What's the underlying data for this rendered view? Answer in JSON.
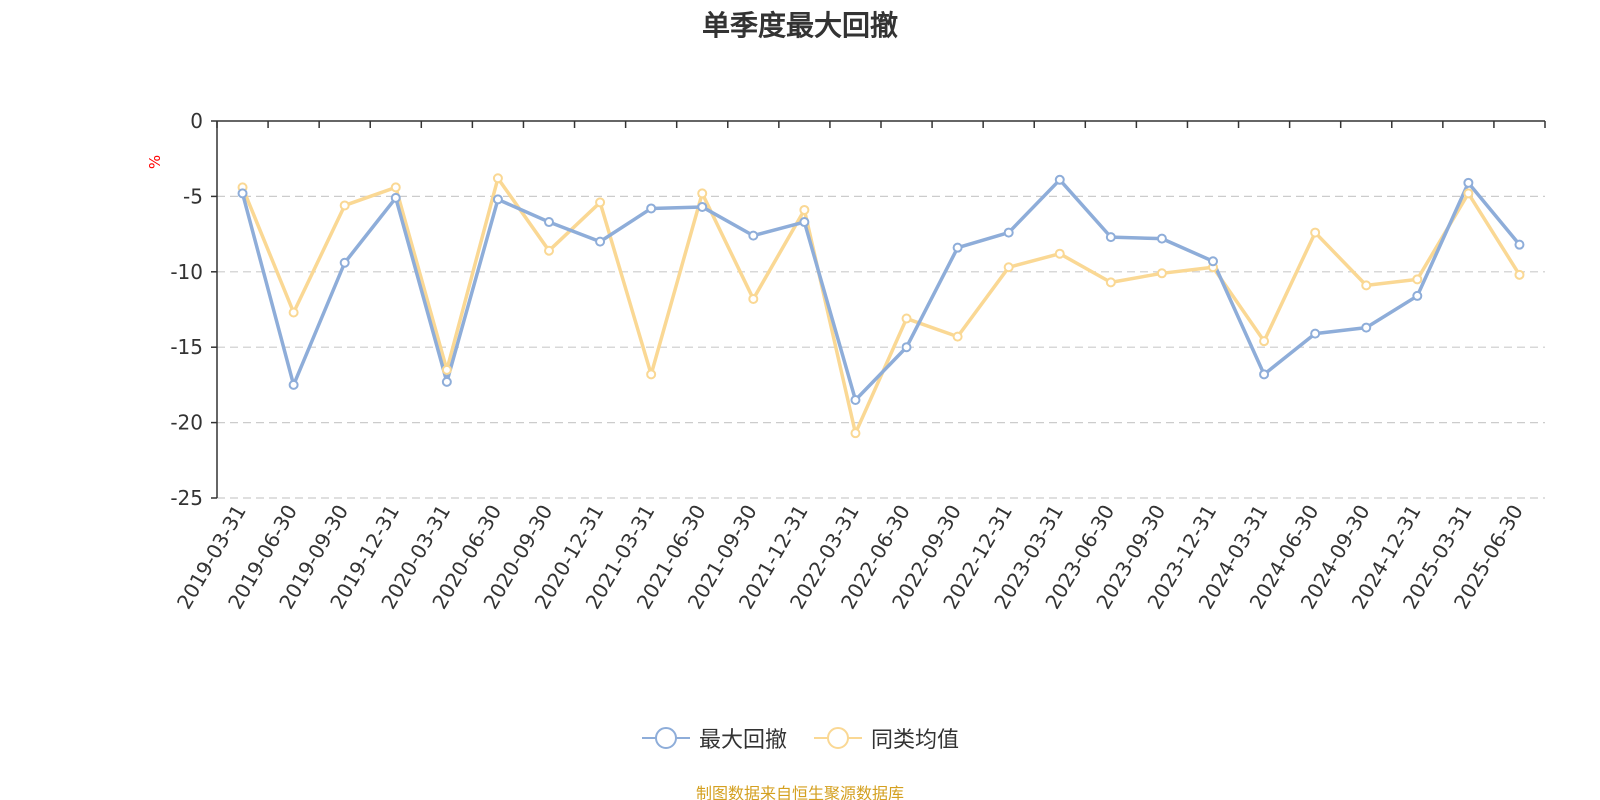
{
  "chart_data": {
    "type": "line",
    "title": "单季度最大回撤",
    "ylabel": "%",
    "ylim": [
      -25,
      0
    ],
    "yticks": [
      0,
      -5,
      -10,
      -15,
      -20,
      -25
    ],
    "grid": true,
    "legend_position": "bottom",
    "categories": [
      "2019-03-31",
      "2019-06-30",
      "2019-09-30",
      "2019-12-31",
      "2020-03-31",
      "2020-06-30",
      "2020-09-30",
      "2020-12-31",
      "2021-03-31",
      "2021-06-30",
      "2021-09-30",
      "2021-12-31",
      "2022-03-31",
      "2022-06-30",
      "2022-09-30",
      "2022-12-31",
      "2023-03-31",
      "2023-06-30",
      "2023-09-30",
      "2023-12-31",
      "2024-03-31",
      "2024-06-30",
      "2024-09-30",
      "2024-12-31",
      "2025-03-31",
      "2025-06-30"
    ],
    "series": [
      {
        "name": "最大回撤",
        "color": "#8eadd9",
        "values": [
          -4.8,
          -17.5,
          -9.4,
          -5.1,
          -17.3,
          -5.2,
          -6.7,
          -8.0,
          -5.8,
          -5.7,
          -7.6,
          -6.7,
          -18.5,
          -15.0,
          -8.4,
          -7.4,
          -3.9,
          -7.7,
          -7.8,
          -9.3,
          -16.8,
          -14.1,
          -13.7,
          -11.6,
          -4.1,
          -8.2
        ]
      },
      {
        "name": "同类均值",
        "color": "#fad894",
        "values": [
          -4.4,
          -12.7,
          -5.6,
          -4.4,
          -16.5,
          -3.8,
          -8.6,
          -5.4,
          -16.8,
          -4.8,
          -11.8,
          -5.9,
          -20.7,
          -13.1,
          -14.3,
          -9.7,
          -8.8,
          -10.7,
          -10.1,
          -9.7,
          -14.6,
          -7.4,
          -10.9,
          -10.5,
          -4.8,
          -10.2
        ]
      }
    ]
  },
  "source_text": "制图数据来自恒生聚源数据库",
  "colors": {
    "axis": "#333333",
    "grid": "#cccccc",
    "ylabel": "#ff0000",
    "source": "#d4a020"
  }
}
